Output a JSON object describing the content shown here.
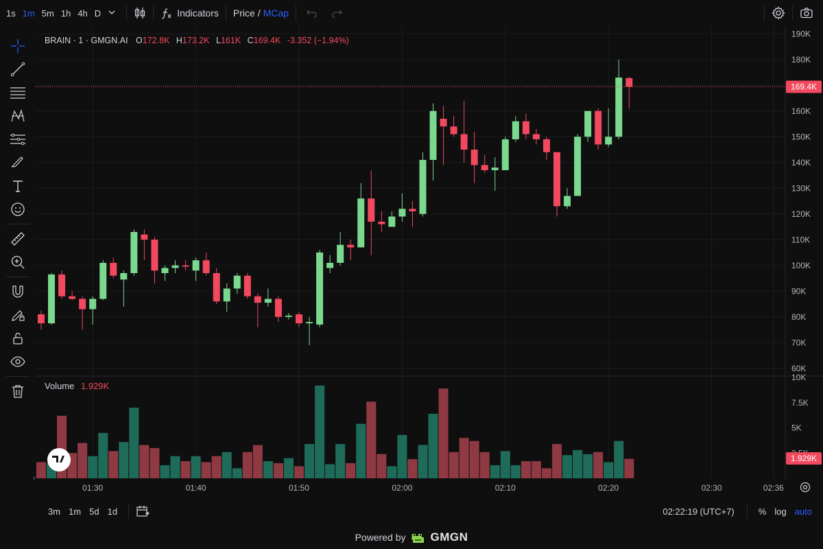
{
  "toolbar": {
    "timeframes": [
      "1s",
      "1m",
      "5m",
      "1h",
      "4h",
      "D"
    ],
    "active_timeframe": "1m",
    "indicators_label": "Indicators",
    "price_label": "Price",
    "slash": "/",
    "mcap_label": "MCap"
  },
  "legend": {
    "symbol": "BRAIN · 1 · GMGN.AI",
    "o_label": "O",
    "o_value": "172.8K",
    "h_label": "H",
    "h_value": "173.2K",
    "l_label": "L",
    "l_value": "161K",
    "c_label": "C",
    "c_value": "169.4K",
    "change": "-3.352 (−1.94%)",
    "volume_label": "Volume",
    "volume_value": "1.929K"
  },
  "price_badge": "169.4K",
  "volume_badge": "1.929K",
  "bottom": {
    "ranges": [
      "3m",
      "1m",
      "5d",
      "1d"
    ],
    "time": "02:22:19 (UTC+7)",
    "percent_label": "%",
    "log_label": "log",
    "auto_label": "auto"
  },
  "footer": {
    "powered_by": "Powered by",
    "brand": "GMGN"
  },
  "colors": {
    "up": "#7bd88f",
    "down": "#f2495f",
    "vol_up": "#1f6b5a",
    "vol_down": "#8f3a43",
    "accent": "#2962ff",
    "background": "#0f0f0f"
  },
  "chart_data": {
    "type": "candlestick",
    "title": "BRAIN · 1 · GMGN.AI",
    "x_ticks": [
      "01:30",
      "01:40",
      "01:50",
      "02:00",
      "02:10",
      "02:20",
      "02:30",
      "02:36"
    ],
    "y_ticks": [
      "60K",
      "70K",
      "80K",
      "90K",
      "100K",
      "110K",
      "120K",
      "130K",
      "140K",
      "150K",
      "160K",
      "170K",
      "180K",
      "190K"
    ],
    "volume_ticks": [
      "2.5K",
      "5K",
      "7.5K",
      "10K"
    ],
    "ylim": [
      57,
      193
    ],
    "volume_ylim": [
      0,
      10000
    ],
    "last_price": 169.4,
    "candles": [
      {
        "o": 81,
        "h": 82.5,
        "l": 75,
        "c": 77.5,
        "v": 1600
      },
      {
        "o": 77.5,
        "h": 97,
        "l": 77,
        "c": 96.5,
        "v": 1500
      },
      {
        "o": 96.5,
        "h": 98,
        "l": 87,
        "c": 88,
        "v": 6200
      },
      {
        "o": 88,
        "h": 90,
        "l": 86.5,
        "c": 87,
        "v": 2500
      },
      {
        "o": 87,
        "h": 88,
        "l": 75,
        "c": 83,
        "v": 3500
      },
      {
        "o": 83,
        "h": 88,
        "l": 77,
        "c": 87,
        "v": 2200
      },
      {
        "o": 87,
        "h": 102,
        "l": 86.5,
        "c": 101,
        "v": 4500
      },
      {
        "o": 101,
        "h": 103,
        "l": 95,
        "c": 96,
        "v": 2700
      },
      {
        "o": 94.5,
        "h": 98,
        "l": 84,
        "c": 97,
        "v": 3600
      },
      {
        "o": 97,
        "h": 114,
        "l": 96,
        "c": 113,
        "v": 7000
      },
      {
        "o": 112,
        "h": 114,
        "l": 102,
        "c": 110,
        "v": 3300
      },
      {
        "o": 110,
        "h": 111,
        "l": 93,
        "c": 98,
        "v": 3000
      },
      {
        "o": 97,
        "h": 100,
        "l": 94,
        "c": 99,
        "v": 1300
      },
      {
        "o": 99,
        "h": 102,
        "l": 97,
        "c": 100,
        "v": 2200
      },
      {
        "o": 100,
        "h": 102,
        "l": 98,
        "c": 99.5,
        "v": 1700
      },
      {
        "o": 98,
        "h": 103,
        "l": 94,
        "c": 102,
        "v": 2200
      },
      {
        "o": 102,
        "h": 105,
        "l": 96,
        "c": 97,
        "v": 1600
      },
      {
        "o": 97,
        "h": 99,
        "l": 85,
        "c": 86,
        "v": 2200
      },
      {
        "o": 86,
        "h": 93,
        "l": 82,
        "c": 91,
        "v": 2600
      },
      {
        "o": 91,
        "h": 97,
        "l": 89,
        "c": 96,
        "v": 1000
      },
      {
        "o": 96,
        "h": 97,
        "l": 87,
        "c": 88,
        "v": 2600
      },
      {
        "o": 88,
        "h": 89,
        "l": 76,
        "c": 85.5,
        "v": 3300
      },
      {
        "o": 85.5,
        "h": 91,
        "l": 84,
        "c": 87,
        "v": 1700
      },
      {
        "o": 87,
        "h": 88,
        "l": 78,
        "c": 80,
        "v": 1500
      },
      {
        "o": 80,
        "h": 81.5,
        "l": 79,
        "c": 80.5,
        "v": 2000
      },
      {
        "o": 81,
        "h": 82,
        "l": 76,
        "c": 77.5,
        "v": 1200
      },
      {
        "o": 77.5,
        "h": 80,
        "l": 69,
        "c": 78,
        "v": 3400
      },
      {
        "o": 77,
        "h": 106,
        "l": 76,
        "c": 105,
        "v": 9200
      },
      {
        "o": 99,
        "h": 104,
        "l": 97,
        "c": 101,
        "v": 1400
      },
      {
        "o": 101,
        "h": 113,
        "l": 100,
        "c": 108,
        "v": 3400
      },
      {
        "o": 108,
        "h": 110,
        "l": 102,
        "c": 107,
        "v": 1500
      },
      {
        "o": 107,
        "h": 132,
        "l": 107,
        "c": 126,
        "v": 5400
      },
      {
        "o": 126,
        "h": 137,
        "l": 104,
        "c": 117,
        "v": 7600
      },
      {
        "o": 117,
        "h": 121,
        "l": 113,
        "c": 116,
        "v": 2400
      },
      {
        "o": 115,
        "h": 121,
        "l": 115,
        "c": 119,
        "v": 1200
      },
      {
        "o": 119,
        "h": 128,
        "l": 117,
        "c": 122,
        "v": 4300
      },
      {
        "o": 122,
        "h": 125,
        "l": 115,
        "c": 121,
        "v": 1900
      },
      {
        "o": 120,
        "h": 144,
        "l": 119,
        "c": 141,
        "v": 3300
      },
      {
        "o": 141,
        "h": 163,
        "l": 133,
        "c": 160,
        "v": 6400
      },
      {
        "o": 157,
        "h": 162,
        "l": 139,
        "c": 154,
        "v": 8900
      },
      {
        "o": 154,
        "h": 158,
        "l": 150,
        "c": 151,
        "v": 2600
      },
      {
        "o": 151,
        "h": 164,
        "l": 140,
        "c": 145,
        "v": 4000
      },
      {
        "o": 145,
        "h": 152,
        "l": 132,
        "c": 139,
        "v": 3700
      },
      {
        "o": 139,
        "h": 143,
        "l": 136,
        "c": 137,
        "v": 2600
      },
      {
        "o": 137,
        "h": 142,
        "l": 129,
        "c": 138,
        "v": 1300
      },
      {
        "o": 137,
        "h": 150,
        "l": 137,
        "c": 149,
        "v": 2700
      },
      {
        "o": 149,
        "h": 158,
        "l": 148,
        "c": 156,
        "v": 1300
      },
      {
        "o": 156,
        "h": 159,
        "l": 149,
        "c": 151,
        "v": 1700
      },
      {
        "o": 151,
        "h": 153,
        "l": 147,
        "c": 149,
        "v": 1700
      },
      {
        "o": 149,
        "h": 150,
        "l": 141,
        "c": 144,
        "v": 1000
      },
      {
        "o": 144,
        "h": 144,
        "l": 119,
        "c": 123,
        "v": 3400
      },
      {
        "o": 123,
        "h": 130,
        "l": 122,
        "c": 127,
        "v": 2300
      },
      {
        "o": 127,
        "h": 151,
        "l": 127,
        "c": 150,
        "v": 2800
      },
      {
        "o": 150,
        "h": 160,
        "l": 148,
        "c": 160,
        "v": 2400
      },
      {
        "o": 160,
        "h": 161,
        "l": 145,
        "c": 147,
        "v": 2600
      },
      {
        "o": 147,
        "h": 161,
        "l": 146,
        "c": 150,
        "v": 1600
      },
      {
        "o": 150,
        "h": 180,
        "l": 149,
        "c": 173,
        "v": 3700
      },
      {
        "o": 172.8,
        "h": 173.2,
        "l": 161,
        "c": 169.4,
        "v": 1929
      }
    ]
  }
}
